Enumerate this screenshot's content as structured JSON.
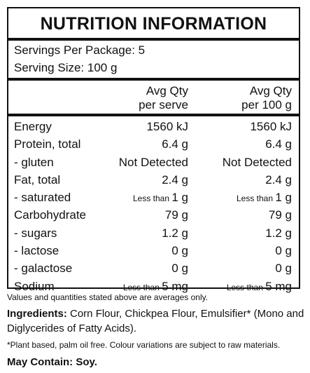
{
  "panel": {
    "title": "NUTRITION INFORMATION",
    "servings_per_package": "Servings Per Package: 5",
    "serving_size": "Serving Size: 100 g",
    "col1_header_line1": "Avg Qty",
    "col1_header_line2": "per serve",
    "col2_header_line1": "Avg Qty",
    "col2_header_line2": "per 100 g",
    "rows": [
      {
        "label": "Energy",
        "prefix1": "",
        "v1": "1560 kJ",
        "prefix2": "",
        "v2": "1560 kJ"
      },
      {
        "label": "Protein, total",
        "prefix1": "",
        "v1": "6.4 g",
        "prefix2": "",
        "v2": "6.4 g"
      },
      {
        "label": "- gluten",
        "prefix1": "",
        "v1": "Not Detected",
        "prefix2": "",
        "v2": "Not Detected"
      },
      {
        "label": "Fat, total",
        "prefix1": "",
        "v1": "2.4 g",
        "prefix2": "",
        "v2": "2.4 g"
      },
      {
        "label": "- saturated",
        "prefix1": "Less than ",
        "v1": "1 g",
        "prefix2": "Less than ",
        "v2": "1 g"
      },
      {
        "label": "Carbohydrate",
        "prefix1": "",
        "v1": "79 g",
        "prefix2": "",
        "v2": "79 g"
      },
      {
        "label": "- sugars",
        "prefix1": "",
        "v1": "1.2 g",
        "prefix2": "",
        "v2": "1.2 g"
      },
      {
        "label": "- lactose",
        "prefix1": "",
        "v1": "0 g",
        "prefix2": "",
        "v2": "0 g"
      },
      {
        "label": "- galactose",
        "prefix1": "",
        "v1": "0 g",
        "prefix2": "",
        "v2": "0 g"
      },
      {
        "label": "Sodium",
        "prefix1": "Less than ",
        "v1": "5 mg",
        "prefix2": "Less than ",
        "v2": "5 mg"
      }
    ]
  },
  "notes": {
    "averages": "Values and quantities stated above are averages only.",
    "ingredients_label": "Ingredients:",
    "ingredients_text": " Corn Flour, Chickpea Flour, Emulsifier* (Mono and Diglycerides of Fatty Acids).",
    "plant_based": "*Plant based, palm oil free. Colour variations are subject to raw materials.",
    "may_contain": "May Contain: Soy."
  }
}
